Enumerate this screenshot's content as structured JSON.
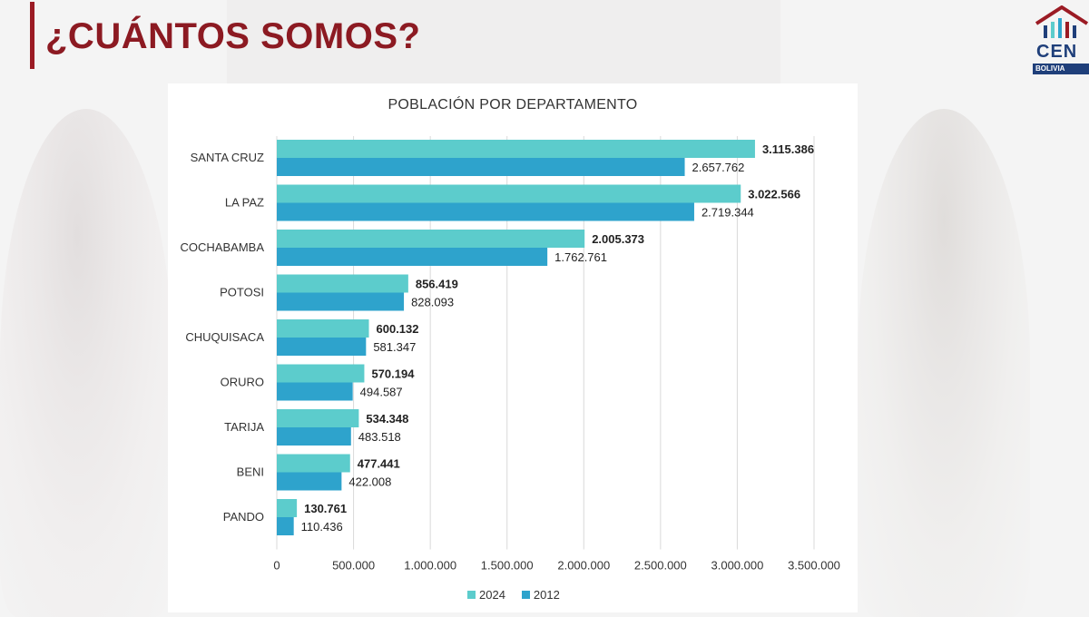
{
  "page": {
    "title": "¿CUÁNTOS SOMOS?"
  },
  "logo": {
    "text": "CEN",
    "sub": "BOLIVIA"
  },
  "colors": {
    "accent": "#9b1b24",
    "series_2024": "#5ccccc",
    "series_2012": "#2ea3cc"
  },
  "chart_data": {
    "type": "bar",
    "orientation": "horizontal",
    "title": "POBLACIÓN POR DEPARTAMENTO",
    "categories": [
      "SANTA CRUZ",
      "LA PAZ",
      "COCHABAMBA",
      "POTOSI",
      "CHUQUISACA",
      "ORURO",
      "TARIJA",
      "BENI",
      "PANDO"
    ],
    "series": [
      {
        "name": "2024",
        "color": "#5ccccc",
        "values": [
          3115386,
          3022566,
          2005373,
          856419,
          600132,
          570194,
          534348,
          477441,
          130761
        ],
        "labels": [
          "3.115.386",
          "3.022.566",
          "2.005.373",
          "856.419",
          "600.132",
          "570.194",
          "534.348",
          "477.441",
          "130.761"
        ]
      },
      {
        "name": "2012",
        "color": "#2ea3cc",
        "values": [
          2657762,
          2719344,
          1762761,
          828093,
          581347,
          494587,
          483518,
          422008,
          110436
        ],
        "labels": [
          "2.657.762",
          "2.719.344",
          "1.762.761",
          "828.093",
          "581.347",
          "494.587",
          "483.518",
          "422.008",
          "110.436"
        ]
      }
    ],
    "xlim": [
      0,
      3500000
    ],
    "xticks": [
      0,
      500000,
      1000000,
      1500000,
      2000000,
      2500000,
      3000000,
      3500000
    ],
    "xtick_labels": [
      "0",
      "500.000",
      "1.000.000",
      "1.500.000",
      "2.000.000",
      "2.500.000",
      "3.000.000",
      "3.500.000"
    ],
    "grid": "vertical",
    "legend_position": "bottom-center"
  }
}
